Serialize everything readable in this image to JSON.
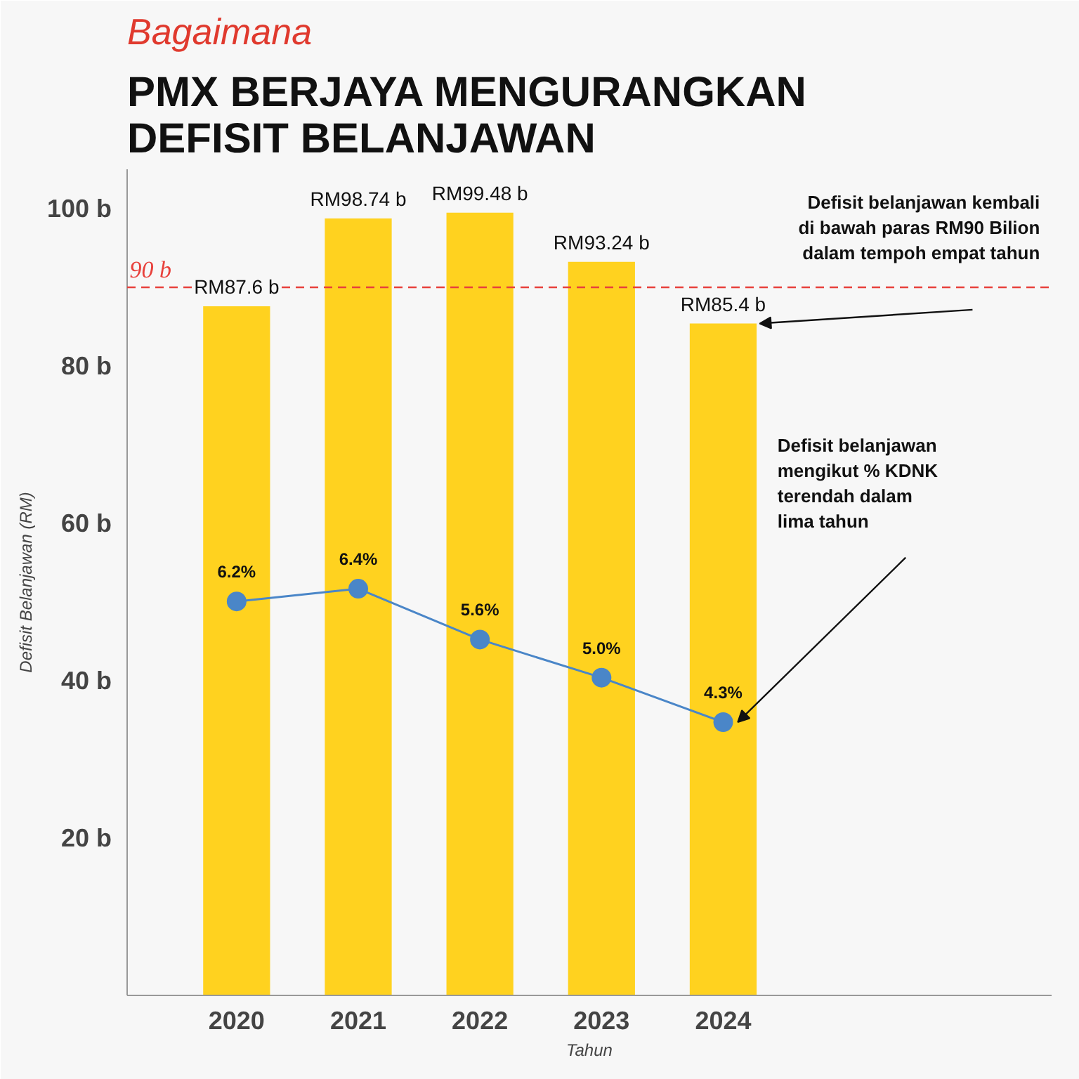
{
  "chart_data": {
    "type": "bar",
    "subtitle": "Bagaimana",
    "title": "PMX BERJAYA MENGURANGKAN\nDEFISIT BELANJAWAN",
    "ylabel": "Defisit Belanjawan (RM)",
    "xlabel": "Tahun",
    "categories": [
      "2020",
      "2021",
      "2022",
      "2023",
      "2024"
    ],
    "series": [
      {
        "color": "#ffd21f",
        "values": [
          87.6,
          98.74,
          99.48,
          93.24,
          85.4
        ],
        "value_labels": [
          "RM87.6 b",
          "RM98.74 b",
          "RM99.48 b",
          "RM93.24 b",
          "RM85.4 b"
        ]
      },
      {
        "type": "line",
        "axis": "y2",
        "color": "#4a86c8",
        "marker": "circle",
        "values": [
          6.2,
          6.4,
          5.6,
          5.0,
          4.3
        ],
        "value_labels": [
          "6.2%",
          "6.4%",
          "5.6%",
          "5.0%",
          "4.3%"
        ]
      }
    ],
    "ylim": [
      0,
      105
    ],
    "yticks": [
      {
        "value": 0,
        "label": null
      },
      {
        "value": 20,
        "label": "20 b"
      },
      {
        "value": 40,
        "label": "40 b"
      },
      {
        "value": 60,
        "label": "60 b"
      },
      {
        "value": 80,
        "label": "80 b"
      },
      {
        "value": 100,
        "label": "100 b"
      }
    ],
    "y2lim": [
      0,
      13
    ],
    "ref_lines": [
      {
        "axis": "y",
        "value": 90,
        "label": "90 b",
        "color": "#e8413c",
        "line_style": "dashed"
      }
    ],
    "annotations": [
      "Defisit belanjawan kembali\ndi bawah paras RM90 Bilion\ndalam tempoh empat tahun",
      "Defisit belanjawan\nmengikut % KDNK\nterendah dalam\nlima tahun"
    ],
    "grid": false
  }
}
